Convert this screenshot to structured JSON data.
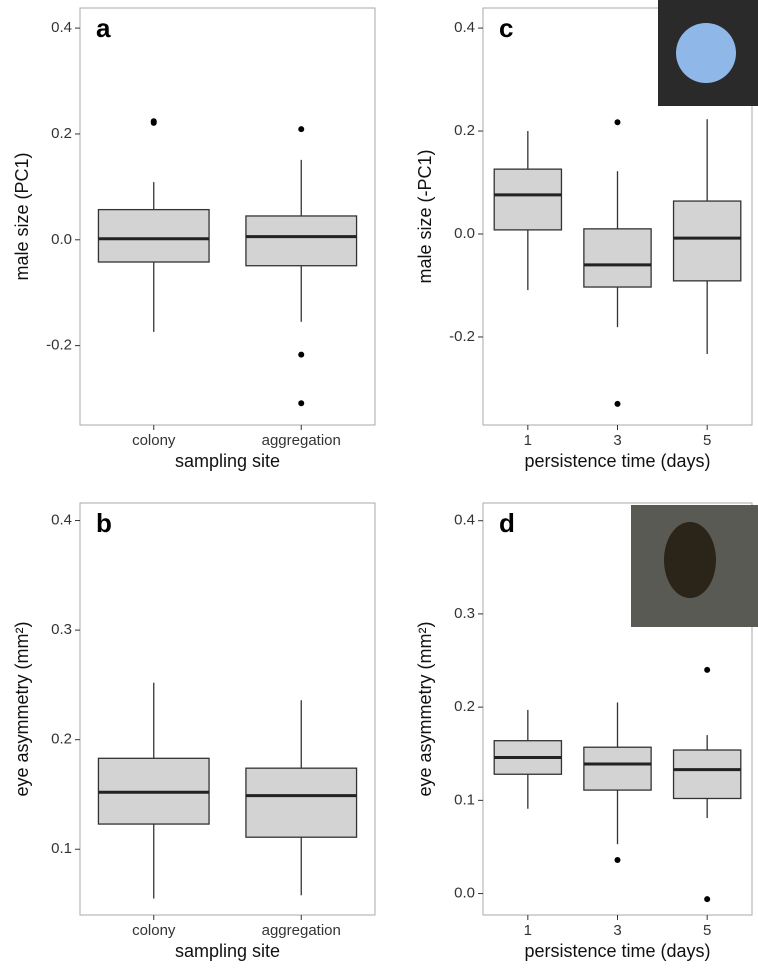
{
  "chart_data": [
    {
      "type": "box",
      "panel_label": "a",
      "xlabel": "sampling site",
      "ylabel": "male size (PC1)",
      "categories": [
        "colony",
        "aggregation"
      ],
      "boxes": [
        {
          "min": -0.174,
          "q1": -0.042,
          "median": 0.002,
          "q3": 0.057,
          "max": 0.109,
          "outliers": [
            0.221,
            0.224
          ]
        },
        {
          "min": -0.155,
          "q1": -0.049,
          "median": 0.006,
          "q3": 0.045,
          "max": 0.151,
          "outliers": [
            0.209,
            -0.217,
            -0.309
          ]
        }
      ],
      "ylim": [
        -0.35,
        0.438
      ],
      "yticks": [
        -0.2,
        {
          "value": 0,
          "label": "0.0"
        },
        0.2,
        0.4
      ]
    },
    {
      "type": "box",
      "panel_label": "b",
      "xlabel": "sampling site",
      "ylabel": "eye asymmetry (mm²)",
      "categories": [
        "colony",
        "aggregation"
      ],
      "boxes": [
        {
          "min": 0.055,
          "q1": 0.123,
          "median": 0.152,
          "q3": 0.183,
          "max": 0.252,
          "outliers": []
        },
        {
          "min": 0.058,
          "q1": 0.111,
          "median": 0.149,
          "q3": 0.174,
          "max": 0.236,
          "outliers": []
        }
      ],
      "ylim": [
        0.04,
        0.416
      ],
      "yticks": [
        0.1,
        0.2,
        0.3,
        0.4
      ]
    },
    {
      "type": "box",
      "panel_label": "c",
      "xlabel": "persistence time (days)",
      "ylabel": "male size (-PC1)",
      "categories": [
        "1",
        "3",
        "5"
      ],
      "boxes": [
        {
          "min": -0.109,
          "q1": 0.008,
          "median": 0.076,
          "q3": 0.126,
          "max": 0.2,
          "outliers": []
        },
        {
          "min": -0.181,
          "q1": -0.103,
          "median": -0.06,
          "q3": 0.01,
          "max": 0.122,
          "outliers": [
            0.217,
            -0.33
          ]
        },
        {
          "min": -0.233,
          "q1": -0.091,
          "median": -0.008,
          "q3": 0.064,
          "max": 0.223,
          "outliers": []
        }
      ],
      "ylim": [
        -0.371,
        0.439
      ],
      "yticks": [
        -0.2,
        {
          "value": 0,
          "label": "0.0"
        },
        0.2,
        0.4
      ]
    },
    {
      "type": "box",
      "panel_label": "d",
      "xlabel": "persistence time (days)",
      "ylabel": "eye asymmetry (mm²)",
      "categories": [
        "1",
        "3",
        "5"
      ],
      "boxes": [
        {
          "min": 0.091,
          "q1": 0.128,
          "median": 0.146,
          "q3": 0.164,
          "max": 0.197,
          "outliers": []
        },
        {
          "min": 0.053,
          "q1": 0.111,
          "median": 0.139,
          "q3": 0.157,
          "max": 0.205,
          "outliers": [
            0.036
          ]
        },
        {
          "min": 0.081,
          "q1": 0.102,
          "median": 0.133,
          "q3": 0.154,
          "max": 0.17,
          "outliers": [
            0.24,
            -0.006
          ]
        }
      ],
      "ylim": [
        -0.023,
        0.419
      ],
      "yticks": [
        {
          "value": 0,
          "label": "0.0"
        },
        0.1,
        0.2,
        0.3,
        0.4
      ]
    }
  ]
}
